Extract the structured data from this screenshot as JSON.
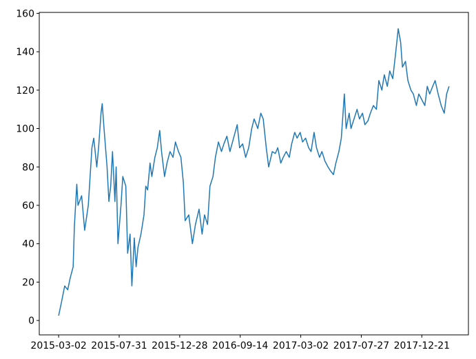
{
  "chart_data": {
    "type": "line",
    "x": [
      0,
      5,
      10,
      15,
      19,
      24,
      26,
      30,
      32,
      38,
      43,
      49,
      55,
      58,
      63,
      66,
      70,
      72,
      75,
      80,
      83,
      86,
      89,
      93,
      95,
      98,
      103,
      106,
      111,
      114,
      118,
      121,
      125,
      128,
      131,
      136,
      141,
      144,
      147,
      151,
      154,
      159,
      163,
      167,
      170,
      175,
      179,
      184,
      189,
      193,
      198,
      202,
      206,
      209,
      215,
      221,
      226,
      232,
      237,
      241,
      246,
      250,
      255,
      259,
      264,
      269,
      273,
      278,
      283,
      289,
      295,
      299,
      304,
      309,
      314,
      319,
      323,
      329,
      334,
      338,
      343,
      347,
      353,
      358,
      362,
      367,
      371,
      376,
      381,
      385,
      390,
      394,
      399,
      403,
      408,
      413,
      417,
      422,
      426,
      431,
      435,
      440,
      445,
      449,
      454,
      458,
      463,
      467,
      472,
      475,
      480,
      483,
      488,
      493,
      497,
      502,
      506,
      511,
      515,
      520,
      525,
      529,
      534,
      538,
      543,
      547,
      552,
      557,
      561,
      565,
      568,
      573,
      577,
      582,
      586,
      591,
      595,
      600,
      605,
      609,
      613,
      618,
      622,
      627,
      632,
      637,
      641,
      645
    ],
    "series": [
      {
        "color": "#1f77b4",
        "values": [
          2.5,
          10,
          18,
          16,
          22,
          28,
          49,
          71,
          60,
          65,
          47,
          60,
          90,
          95,
          80,
          90,
          108,
          113,
          100,
          80,
          62,
          70,
          88,
          62,
          80,
          40,
          60,
          75,
          70,
          35,
          45,
          18,
          43,
          28,
          38,
          45,
          55,
          70,
          68,
          82,
          75,
          85,
          90,
          99,
          88,
          75,
          82,
          88,
          85,
          93,
          88,
          85,
          72,
          52,
          55,
          40,
          50,
          58,
          45,
          55,
          50,
          70,
          75,
          85,
          93,
          88,
          92,
          96,
          88,
          95,
          102,
          90,
          92,
          85,
          90,
          100,
          105,
          100,
          108,
          105,
          90,
          80,
          88,
          87,
          90,
          82,
          85,
          88,
          85,
          92,
          98,
          95,
          98,
          93,
          95,
          90,
          88,
          98,
          90,
          85,
          88,
          83,
          80,
          78,
          76,
          82,
          88,
          95,
          118,
          100,
          108,
          100,
          105,
          110,
          105,
          108,
          102,
          104,
          108,
          112,
          110,
          125,
          120,
          128,
          122,
          130,
          126,
          140,
          152,
          145,
          132,
          135,
          125,
          120,
          118,
          112,
          118,
          115,
          112,
          122,
          118,
          122,
          125,
          118,
          112,
          108,
          118,
          122
        ]
      }
    ],
    "xlim": [
      -32,
      677
    ],
    "xticks": [
      {
        "value": 0,
        "label": "2015-03-02"
      },
      {
        "value": 100,
        "label": "2015-07-31"
      },
      {
        "value": 200,
        "label": "2015-12-28"
      },
      {
        "value": 300,
        "label": "2016-09-14"
      },
      {
        "value": 400,
        "label": "2017-03-02"
      },
      {
        "value": 500,
        "label": "2017-07-27"
      },
      {
        "value": 600,
        "label": "2017-12-21"
      }
    ],
    "ylim": [
      -7.5,
      160.5
    ],
    "yticks": [
      0,
      20,
      40,
      60,
      80,
      100,
      120,
      140,
      160
    ]
  }
}
